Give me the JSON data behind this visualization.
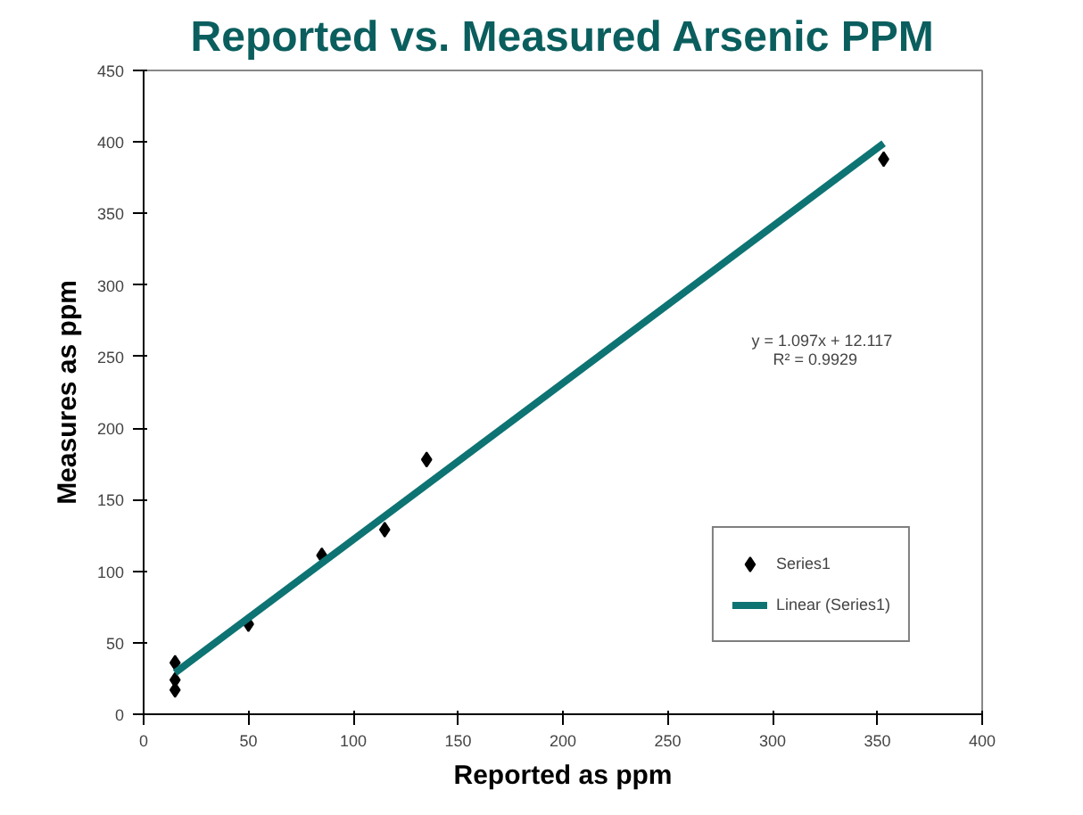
{
  "chart_data": {
    "type": "scatter",
    "title": "Reported vs. Measured Arsenic PPM",
    "xlabel": "Reported as ppm",
    "ylabel": "Measures as ppm",
    "xlim": [
      0,
      400
    ],
    "xticks": [
      0,
      50,
      100,
      150,
      200,
      250,
      300,
      350,
      400
    ],
    "ylim": [
      0,
      450
    ],
    "yticks": [
      0,
      50,
      100,
      150,
      200,
      250,
      300,
      350,
      400,
      450
    ],
    "grid": false,
    "legend": "bottom right",
    "annotations": [
      "y = 1.097x + 12.117",
      "R² = 0.9929"
    ],
    "series": [
      {
        "name": "Series1",
        "marker": "diamond",
        "color": "#000000",
        "x": [
          15,
          15,
          15,
          50,
          85,
          115,
          135,
          353
        ],
        "values": [
          36,
          24,
          17,
          63,
          111,
          129,
          178,
          388
        ]
      },
      {
        "name": "Linear (Series1)",
        "type": "line",
        "color": "#0e7373",
        "line_style": "solid",
        "marker": "none",
        "x": [
          15,
          353
        ],
        "values": [
          29,
          399
        ]
      }
    ]
  }
}
